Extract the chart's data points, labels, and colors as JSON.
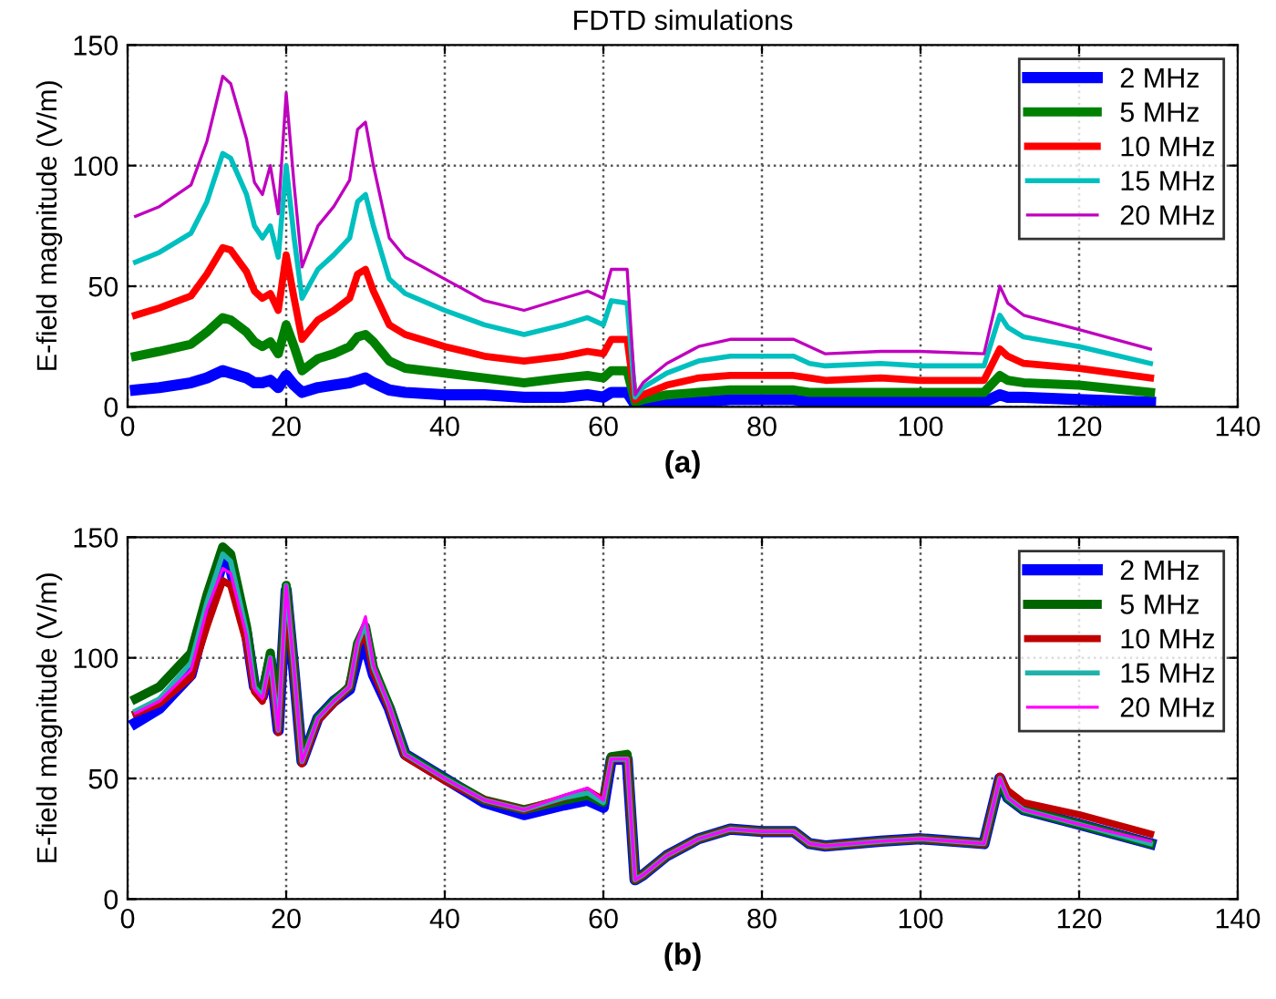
{
  "chart_data": [
    {
      "type": "line",
      "title": "FDTD simulations",
      "subtitle": "(a)",
      "ylabel": "E-field magnitude (V/m)",
      "xlim": [
        0,
        140
      ],
      "ylim": [
        0,
        150
      ],
      "xticks": [
        0,
        20,
        40,
        60,
        80,
        100,
        120,
        140
      ],
      "yticks": [
        0,
        50,
        100,
        150
      ],
      "grid": true,
      "legend": "top right",
      "line_style": "solid",
      "marker": "none",
      "x": [
        1,
        4,
        8,
        10,
        12,
        13,
        15,
        16,
        17,
        18,
        19,
        20,
        21,
        22,
        24,
        26,
        28,
        29,
        30,
        31,
        33,
        35,
        40,
        45,
        50,
        55,
        58,
        60,
        61,
        63,
        64,
        65,
        68,
        72,
        76,
        80,
        84,
        86,
        88,
        95,
        100,
        108,
        110,
        111,
        113,
        120,
        129
      ],
      "series": [
        {
          "name": "2 MHz",
          "color": "#0000ff",
          "values": [
            7,
            8,
            10,
            12,
            15,
            14,
            12,
            10,
            10,
            11,
            8,
            13,
            9,
            6,
            8,
            9,
            10,
            11,
            12,
            10,
            7,
            6,
            5,
            5,
            4,
            4,
            5,
            4,
            6,
            6,
            1,
            1,
            2,
            2,
            3,
            3,
            3,
            2,
            2,
            2,
            2,
            2,
            5,
            4,
            4,
            3,
            2
          ]
        },
        {
          "name": "5 MHz",
          "color": "#008000",
          "values": [
            21,
            23,
            26,
            31,
            37,
            36,
            31,
            27,
            25,
            27,
            22,
            34,
            25,
            15,
            20,
            22,
            25,
            29,
            30,
            27,
            19,
            16,
            14,
            12,
            10,
            12,
            13,
            12,
            15,
            15,
            2,
            3,
            5,
            6,
            7,
            7,
            7,
            6,
            6,
            6,
            6,
            6,
            13,
            11,
            10,
            9,
            6
          ]
        },
        {
          "name": "10 MHz",
          "color": "#ff0000",
          "values": [
            38,
            41,
            46,
            55,
            66,
            65,
            56,
            48,
            45,
            47,
            40,
            63,
            45,
            28,
            36,
            40,
            45,
            55,
            57,
            48,
            34,
            30,
            25,
            21,
            19,
            21,
            23,
            22,
            28,
            28,
            3,
            5,
            9,
            12,
            13,
            13,
            13,
            12,
            11,
            12,
            11,
            11,
            24,
            21,
            18,
            16,
            12
          ]
        },
        {
          "name": "15 MHz",
          "color": "#00bfbf",
          "values": [
            60,
            64,
            72,
            85,
            105,
            103,
            88,
            75,
            70,
            75,
            62,
            100,
            70,
            45,
            57,
            63,
            70,
            85,
            88,
            75,
            53,
            47,
            40,
            34,
            30,
            34,
            37,
            34,
            44,
            43,
            4,
            8,
            14,
            19,
            21,
            21,
            21,
            18,
            17,
            18,
            17,
            17,
            38,
            33,
            29,
            25,
            18
          ]
        },
        {
          "name": "20 MHz",
          "color": "#bf00bf",
          "values": [
            79,
            83,
            92,
            110,
            137,
            134,
            111,
            93,
            88,
            100,
            80,
            130,
            92,
            58,
            75,
            83,
            94,
            115,
            118,
            100,
            70,
            62,
            53,
            44,
            40,
            45,
            48,
            45,
            57,
            57,
            5,
            10,
            18,
            25,
            28,
            28,
            28,
            25,
            22,
            23,
            23,
            22,
            50,
            43,
            38,
            32,
            24
          ]
        }
      ]
    },
    {
      "type": "line",
      "subtitle": "(b)",
      "ylabel": "E-field magnitude (V/m)",
      "xlim": [
        0,
        140
      ],
      "ylim": [
        0,
        150
      ],
      "xticks": [
        0,
        20,
        40,
        60,
        80,
        100,
        120,
        140
      ],
      "yticks": [
        0,
        50,
        100,
        150
      ],
      "grid": true,
      "legend": "top right",
      "line_style": "solid",
      "marker": "none",
      "x": [
        1,
        4,
        8,
        10,
        12,
        13,
        15,
        16,
        17,
        18,
        19,
        20,
        21,
        22,
        24,
        26,
        28,
        29,
        30,
        31,
        33,
        35,
        40,
        45,
        50,
        55,
        58,
        60,
        61,
        63,
        64,
        65,
        68,
        72,
        76,
        80,
        84,
        86,
        88,
        95,
        100,
        108,
        110,
        111,
        113,
        120,
        129
      ],
      "series": [
        {
          "name": "2 MHz",
          "color": "#0000ff",
          "values": [
            73,
            79,
            93,
            118,
            140,
            137,
            110,
            88,
            84,
            99,
            70,
            128,
            94,
            57,
            75,
            82,
            87,
            100,
            105,
            93,
            79,
            60,
            50,
            40,
            35,
            39,
            41,
            38,
            58,
            58,
            8,
            10,
            18,
            25,
            29,
            28,
            28,
            23,
            22,
            24,
            25,
            23,
            50,
            42,
            37,
            31,
            23
          ]
        },
        {
          "name": "5 MHz",
          "color": "#006400",
          "values": [
            83,
            88,
            102,
            126,
            146,
            143,
            113,
            89,
            85,
            102,
            71,
            130,
            95,
            57,
            75,
            82,
            88,
            106,
            113,
            96,
            80,
            60,
            50,
            41,
            37,
            41,
            43,
            40,
            59,
            60,
            8,
            10,
            18,
            25,
            29,
            28,
            28,
            23,
            22,
            24,
            25,
            23,
            50,
            42,
            37,
            31,
            23
          ]
        },
        {
          "name": "10 MHz",
          "color": "#c00000",
          "values": [
            77,
            81,
            92,
            113,
            132,
            130,
            106,
            86,
            82,
            98,
            69,
            127,
            94,
            56,
            74,
            81,
            88,
            105,
            110,
            94,
            79,
            59,
            49,
            41,
            37,
            42,
            45,
            41,
            58,
            58,
            8,
            10,
            18,
            25,
            29,
            28,
            28,
            23,
            22,
            24,
            25,
            23,
            51,
            45,
            40,
            35,
            27
          ]
        },
        {
          "name": "15 MHz",
          "color": "#20b2aa",
          "values": [
            78,
            83,
            98,
            123,
            143,
            140,
            111,
            88,
            84,
            100,
            70,
            130,
            95,
            57,
            75,
            82,
            88,
            106,
            114,
            96,
            80,
            60,
            50,
            41,
            37,
            42,
            44,
            40,
            58,
            58,
            8,
            10,
            18,
            25,
            29,
            28,
            28,
            23,
            22,
            24,
            25,
            23,
            50,
            42,
            37,
            31,
            23
          ]
        },
        {
          "name": "20 MHz",
          "color": "#ff00ff",
          "values": [
            77,
            82,
            95,
            120,
            137,
            135,
            109,
            87,
            83,
            100,
            70,
            130,
            95,
            57,
            75,
            82,
            88,
            107,
            117,
            97,
            80,
            60,
            50,
            41,
            37,
            43,
            46,
            41,
            58,
            58,
            8,
            10,
            18,
            25,
            29,
            28,
            28,
            23,
            22,
            24,
            25,
            23,
            50,
            42,
            37,
            31,
            24
          ]
        }
      ]
    }
  ]
}
